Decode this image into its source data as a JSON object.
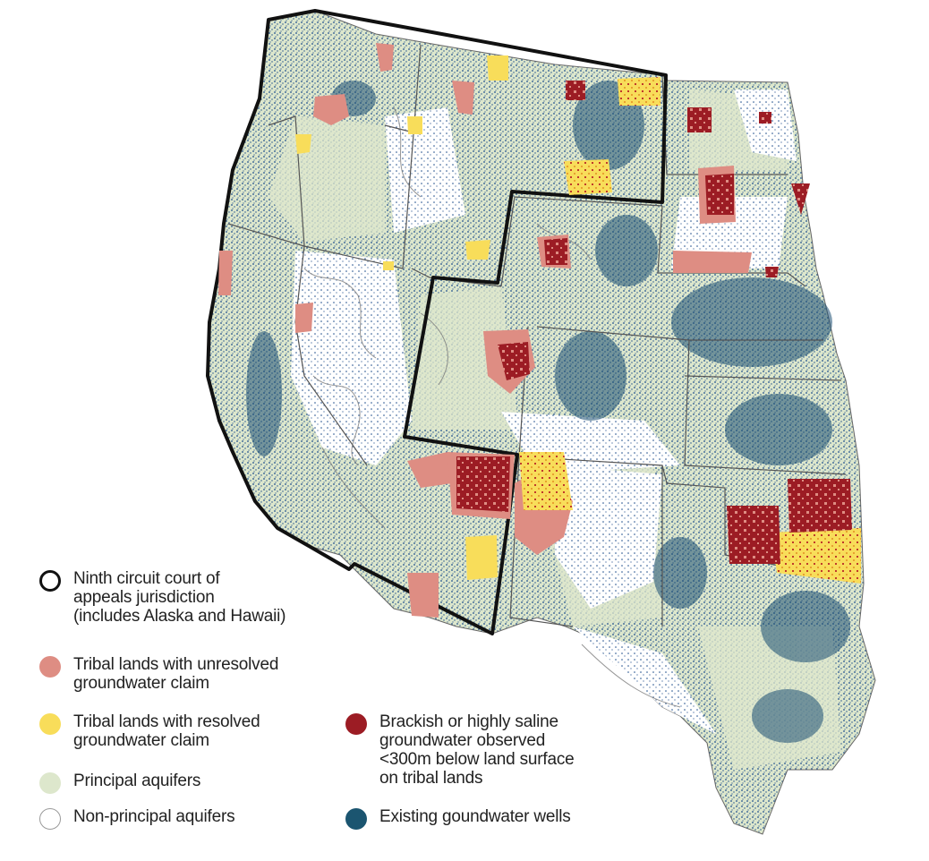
{
  "map": {
    "colors": {
      "principal_aquifer": "#dde7cc",
      "non_principal": "#ffffff",
      "wells": "#1f4e8c",
      "wells_dense": "#1b4f72",
      "unresolved": "#de8d83",
      "resolved": "#f8dd5a",
      "saline": "#9c1c24",
      "outline": "#111111",
      "state_border": "#555555",
      "aquifer_contour": "#7a7a7a"
    }
  },
  "legend": {
    "items": [
      {
        "id": "ninth-circuit",
        "label": "Ninth circuit court of\nappeals jurisdiction\n(includes Alaska and Hawaii)",
        "swatch": "ring",
        "color": "#111111"
      },
      {
        "id": "unresolved",
        "label": "Tribal lands with unresolved\ngroundwater claim",
        "swatch": "fill",
        "color": "#de8d83"
      },
      {
        "id": "resolved",
        "label": "Tribal lands with resolved\ngroundwater claim",
        "swatch": "fill",
        "color": "#f8dd5a"
      },
      {
        "id": "principal",
        "label": "Principal aquifers",
        "swatch": "fill",
        "color": "#dde7cc"
      },
      {
        "id": "non-principal",
        "label": "Non-principal aquifers",
        "swatch": "ring-light",
        "color": "#9a9a9a"
      },
      {
        "id": "saline",
        "label": "Brackish or highly saline\ngroundwater observed\n<300m below land surface\non tribal lands",
        "swatch": "fill",
        "color": "#9c1c24"
      },
      {
        "id": "wells",
        "label": "Existing goundwater wells",
        "swatch": "fill",
        "color": "#1b5570"
      }
    ]
  }
}
